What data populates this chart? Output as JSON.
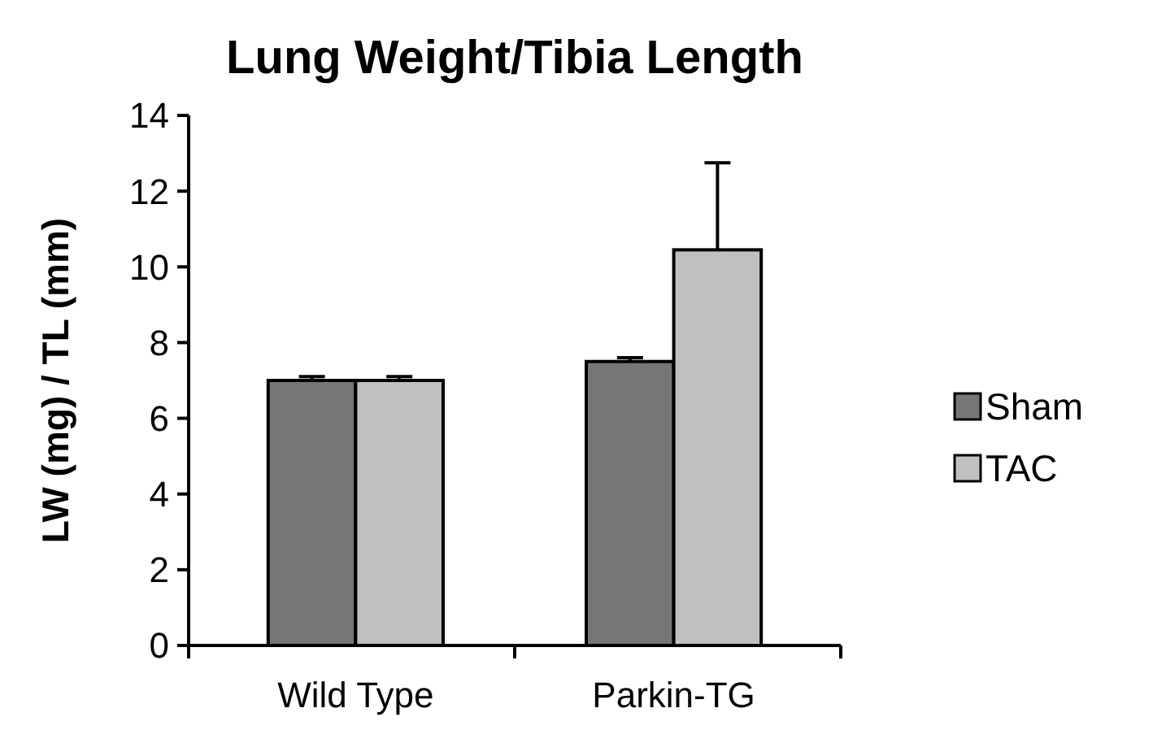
{
  "chart_data": {
    "type": "bar",
    "title": "Lung Weight/Tibia Length",
    "ylabel": "LW (mg) / TL (mm)",
    "categories": [
      "Wild Type",
      "Parkin-TG"
    ],
    "series": [
      {
        "name": "Sham",
        "color": "#767676",
        "values": [
          7.0,
          7.5
        ],
        "errors": [
          0.1,
          0.1
        ]
      },
      {
        "name": "TAC",
        "color": "#c0c0c0",
        "values": [
          7.0,
          10.45
        ],
        "errors": [
          0.1,
          2.3
        ]
      }
    ],
    "ylim": [
      0,
      14
    ],
    "yticks": [
      0,
      2,
      4,
      6,
      8,
      10,
      12,
      14
    ],
    "grid": false,
    "legend": "right"
  }
}
